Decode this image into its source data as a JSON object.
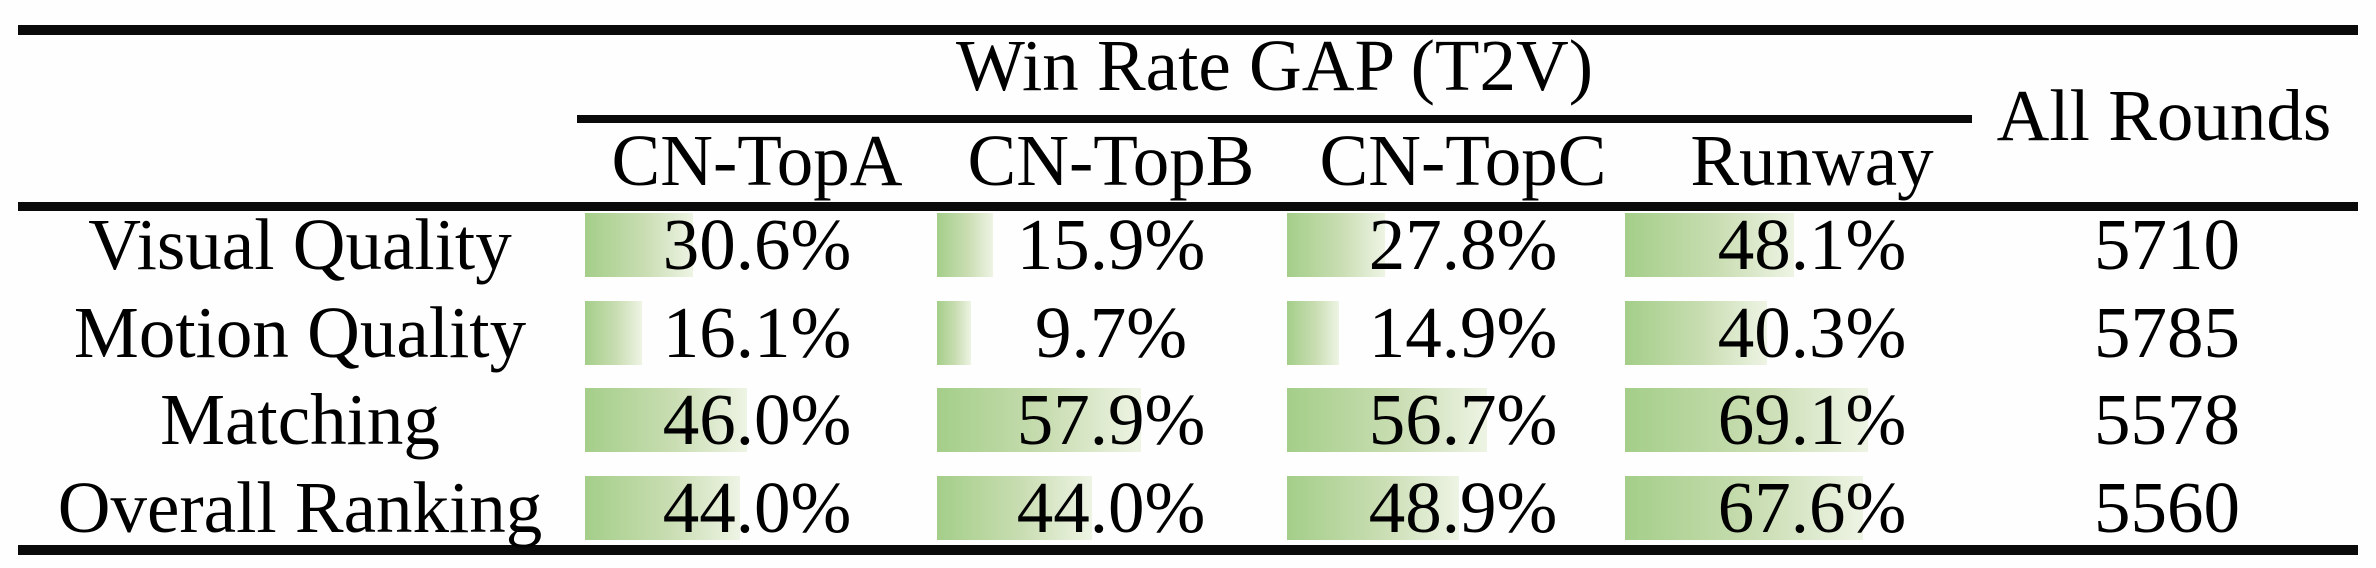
{
  "table": {
    "title": "Win Rate GAP (T2V)",
    "all_rounds_header": "All Rounds",
    "columns": [
      "CN-TopA",
      "CN-TopB",
      "CN-TopC",
      "Runway"
    ],
    "rows": [
      {
        "label": "Visual Quality",
        "cells": [
          {
            "v": 30.6,
            "label": "30.6%"
          },
          {
            "v": 15.9,
            "label": "15.9%"
          },
          {
            "v": 27.8,
            "label": "27.8%"
          },
          {
            "v": 48.1,
            "label": "48.1%"
          }
        ],
        "all_rounds": "5710"
      },
      {
        "label": "Motion Quality",
        "cells": [
          {
            "v": 16.1,
            "label": "16.1%"
          },
          {
            "v": 9.7,
            "label": "9.7%"
          },
          {
            "v": 14.9,
            "label": "14.9%"
          },
          {
            "v": 40.3,
            "label": "40.3%"
          }
        ],
        "all_rounds": "5785"
      },
      {
        "label": "Matching",
        "cells": [
          {
            "v": 46.0,
            "label": "46.0%"
          },
          {
            "v": 57.9,
            "label": "57.9%"
          },
          {
            "v": 56.7,
            "label": "56.7%"
          },
          {
            "v": 69.1,
            "label": "69.1%"
          }
        ],
        "all_rounds": "5578"
      },
      {
        "label": "Overall Ranking",
        "cells": [
          {
            "v": 44.0,
            "label": "44.0%"
          },
          {
            "v": 44.0,
            "label": "44.0%"
          },
          {
            "v": 48.9,
            "label": "48.9%"
          },
          {
            "v": 67.6,
            "label": "67.6%"
          }
        ],
        "all_rounds": "5560"
      }
    ],
    "bar_colors": {
      "start": "#a4ce89",
      "end": "#eef4e4"
    },
    "rule_color": "#0a0a0a"
  }
}
